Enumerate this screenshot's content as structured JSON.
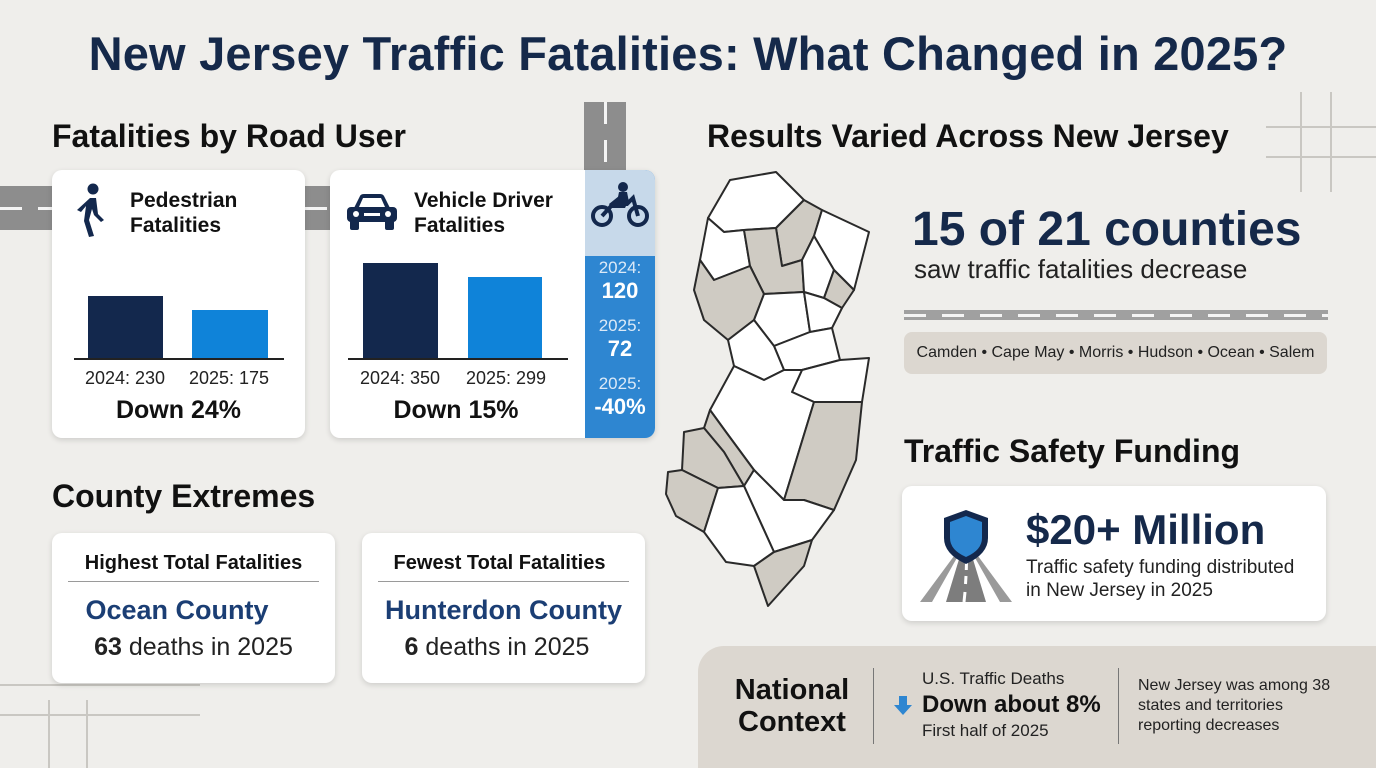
{
  "title": "New Jersey Traffic Fatalities: What Changed in 2025?",
  "road_user": {
    "heading": "Fatalities by Road User",
    "pedestrian": {
      "label_line1": "Pedestrian",
      "label_line2": "Fatalities",
      "icon": "pedestrian-icon",
      "value_2024": 230,
      "value_2025": 175,
      "label_2024": "2024: 230",
      "label_2025": "2025: 175",
      "change": "Down 24%"
    },
    "vehicle_driver": {
      "label_line1": "Vehicle Driver",
      "label_line2": "Fatalities",
      "icon": "car-icon",
      "value_2024": 350,
      "value_2025": 299,
      "label_2024": "2024: 350",
      "label_2025": "2025: 299",
      "change": "Down 15%"
    },
    "motorcycle": {
      "icon": "motorcycle-icon",
      "label_2024": "2024:",
      "value_2024": "120",
      "label_2025": "2025:",
      "value_2025": "72",
      "label_change": "2025:",
      "change": "-40%"
    }
  },
  "extremes": {
    "heading": "County Extremes",
    "highest": {
      "heading": "Highest Total Fatalities",
      "county": "Ocean County",
      "count": "63",
      "suffix": " deaths in 2025"
    },
    "fewest": {
      "heading": "Fewest Total Fatalities",
      "county": "Hunterdon County",
      "count": "6",
      "suffix": " deaths in 2025"
    }
  },
  "results": {
    "heading": "Results Varied Across New Jersey",
    "stat": "15 of  21 counties",
    "stat_sub": "saw traffic fatalities decrease",
    "counties": "Camden • Cape May • Morris • Hudson • Ocean • Salem"
  },
  "funding": {
    "heading": "Traffic Safety Funding",
    "amount": "$20+ Million",
    "line1": "Traffic safety funding distributed",
    "line2": "in New Jersey in 2025",
    "icon": "shield-road-icon"
  },
  "national": {
    "title_line1": "National",
    "title_line2": "Context",
    "label": "U.S. Traffic Deaths",
    "value": "Down about 8%",
    "period": "First half of 2025",
    "note_line1": "New Jersey was among 38",
    "note_line2": "states and territories",
    "note_line3": "reporting decreases",
    "icon": "down-arrow-icon"
  },
  "colors": {
    "title_navy": "#15294a",
    "bar_2024": "#13284d",
    "bar_2025": "#0f83d9",
    "motorcycle_blue": "#2e86d1",
    "map_shaded": "#cfcbc3",
    "background": "#efeeeb"
  }
}
